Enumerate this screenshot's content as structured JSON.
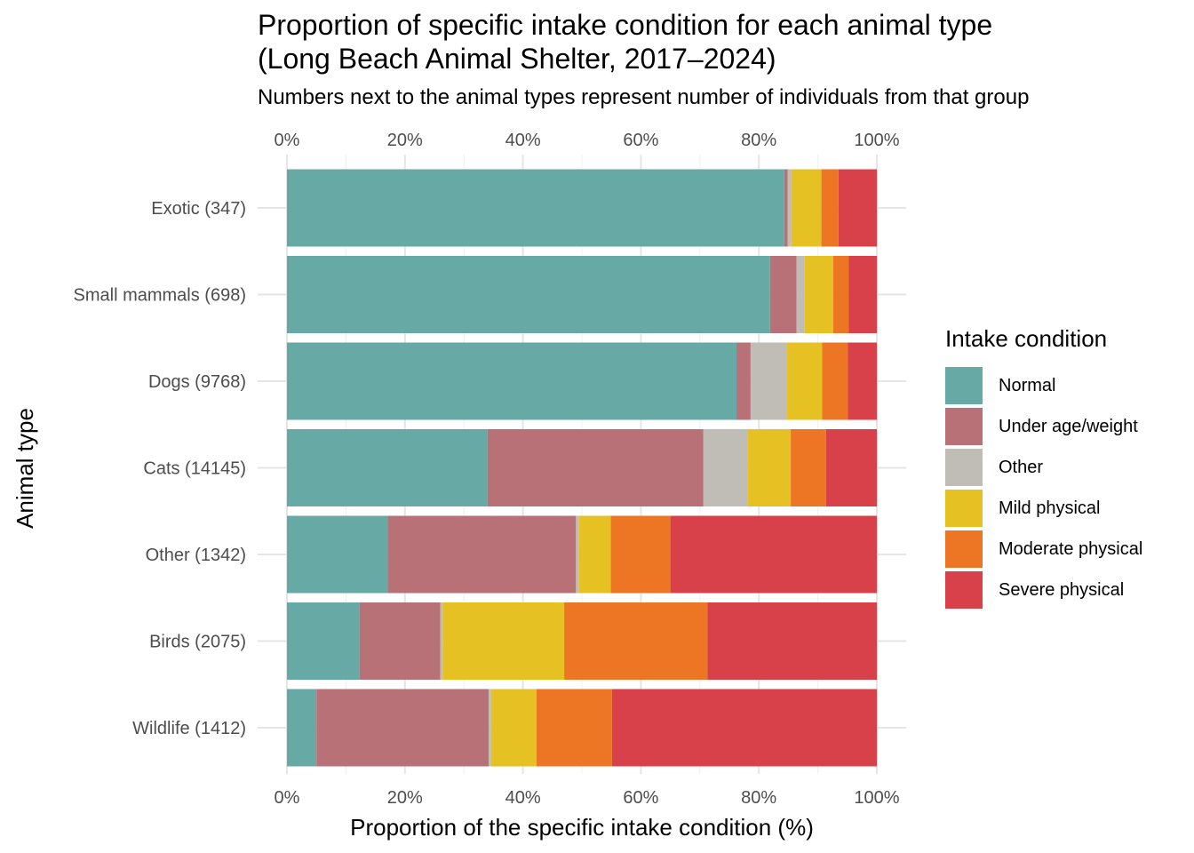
{
  "chart_data": {
    "type": "bar",
    "orientation": "horizontal",
    "stacked": "percent",
    "title": [
      "Proportion of specific intake condition for each animal type",
      "(Long Beach Animal Shelter, 2017–2024)"
    ],
    "subtitle": "Numbers next to the animal types represent number of individuals from that group",
    "xlabel": "Proportion of the specific intake condition (%)",
    "ylabel": "Animal type",
    "xlim": [
      0,
      100
    ],
    "x_ticks": [
      "0%",
      "20%",
      "40%",
      "60%",
      "80%",
      "100%"
    ],
    "x_tick_values": [
      0,
      20,
      40,
      60,
      80,
      100
    ],
    "x_axis_labels_position": "top and bottom",
    "grid": true,
    "legend_title": "Intake condition",
    "legend_position": "right",
    "categories": [
      "Exotic (347)",
      "Small mammals (698)",
      "Dogs (9768)",
      "Cats (14145)",
      "Other (1342)",
      "Birds (2075)",
      "Wildlife (1412)"
    ],
    "series": [
      {
        "name": "Normal",
        "color": "#67aaa5",
        "values": [
          84.3,
          81.9,
          76.2,
          34.0,
          17.1,
          12.3,
          5.0
        ]
      },
      {
        "name": "Under age/weight",
        "color": "#b97178",
        "values": [
          0.6,
          4.5,
          2.4,
          36.6,
          31.9,
          13.7,
          29.2
        ]
      },
      {
        "name": "Other",
        "color": "#c0bcb6",
        "values": [
          0.6,
          1.3,
          6.1,
          7.5,
          0.5,
          0.4,
          0.4
        ]
      },
      {
        "name": "Mild physical",
        "color": "#e6c123",
        "values": [
          5.1,
          4.9,
          6.0,
          7.3,
          5.4,
          20.6,
          7.7
        ]
      },
      {
        "name": "Moderate physical",
        "color": "#ec7624",
        "values": [
          2.9,
          2.6,
          4.4,
          6.0,
          10.1,
          24.3,
          12.8
        ]
      },
      {
        "name": "Severe physical",
        "color": "#d9414a",
        "values": [
          6.5,
          4.8,
          4.9,
          8.6,
          35.0,
          28.7,
          44.9
        ]
      }
    ]
  }
}
